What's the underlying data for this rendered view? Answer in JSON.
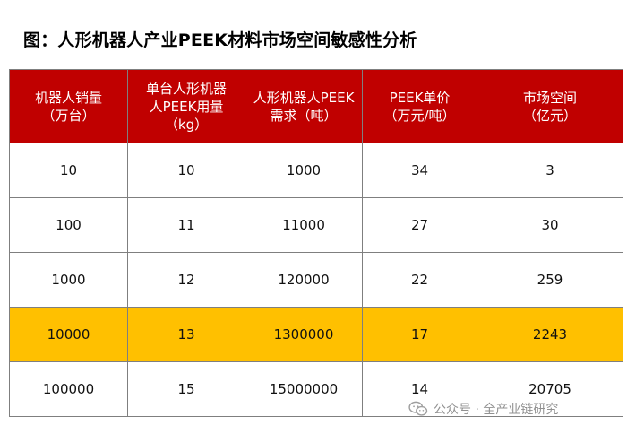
{
  "title": "图：人形机器人产业PEEK材料市场空间敏感性分析",
  "table": {
    "headers": [
      "机器人销量\n（万台）",
      "单台人形机器\n人PEEK用量\n（kg）",
      "人形机器人PEEK\n需求（吨）",
      "PEEK单价\n（万元/吨）",
      "市场空间\n（亿元）"
    ],
    "rows": [
      [
        "10",
        "10",
        "1000",
        "34",
        "3"
      ],
      [
        "100",
        "11",
        "11000",
        "27",
        "30"
      ],
      [
        "1000",
        "12",
        "120000",
        "22",
        "259"
      ],
      [
        "10000",
        "13",
        "1300000",
        "17",
        "2243"
      ],
      [
        "100000",
        "15",
        "15000000",
        "14",
        "20705"
      ]
    ],
    "highlight_row": 3,
    "header_color": "#c00000",
    "highlight_color": "#ffc000"
  },
  "watermark": {
    "text": "公众号 · 全产业链研究",
    "icon": "wechat-icon"
  }
}
